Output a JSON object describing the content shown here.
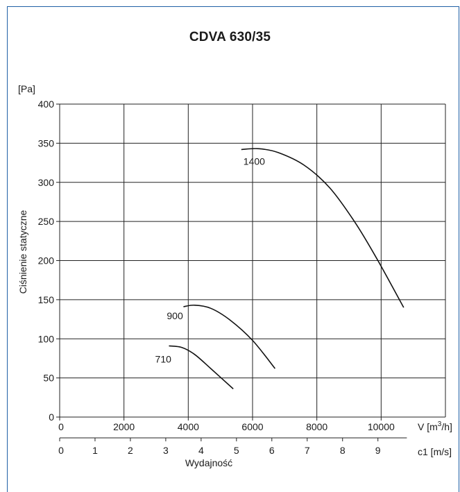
{
  "chart_data": {
    "type": "line",
    "title": "CDVA 630/35",
    "ylabel": "Ciśnienie statyczne",
    "ylabel_unit": "[Pa]",
    "xlabel": "Wydajność",
    "x_unit": "V [m³/h]",
    "x2_unit": "c1 [m/s]",
    "xlim": [
      0,
      12000
    ],
    "ylim": [
      0,
      400
    ],
    "x_ticks": [
      0,
      2000,
      4000,
      6000,
      8000,
      10000
    ],
    "y_ticks": [
      0,
      50,
      100,
      150,
      200,
      250,
      300,
      350,
      400
    ],
    "x2_ticks": [
      0,
      1,
      2,
      3,
      4,
      5,
      6,
      7,
      8,
      9
    ],
    "x2_per_unit": 1100,
    "grid": true,
    "series": [
      {
        "name": "1400",
        "points": [
          [
            5650,
            342
          ],
          [
            6200,
            343
          ],
          [
            6800,
            338
          ],
          [
            7600,
            322
          ],
          [
            8400,
            293
          ],
          [
            9200,
            248
          ],
          [
            9900,
            200
          ],
          [
            10700,
            140
          ]
        ]
      },
      {
        "name": "900",
        "points": [
          [
            3850,
            141
          ],
          [
            4200,
            143
          ],
          [
            4700,
            139
          ],
          [
            5300,
            124
          ],
          [
            6000,
            98
          ],
          [
            6700,
            62
          ]
        ]
      },
      {
        "name": "710",
        "points": [
          [
            3400,
            91
          ],
          [
            3800,
            89
          ],
          [
            4200,
            80
          ],
          [
            4700,
            62
          ],
          [
            5400,
            36
          ]
        ]
      }
    ]
  }
}
